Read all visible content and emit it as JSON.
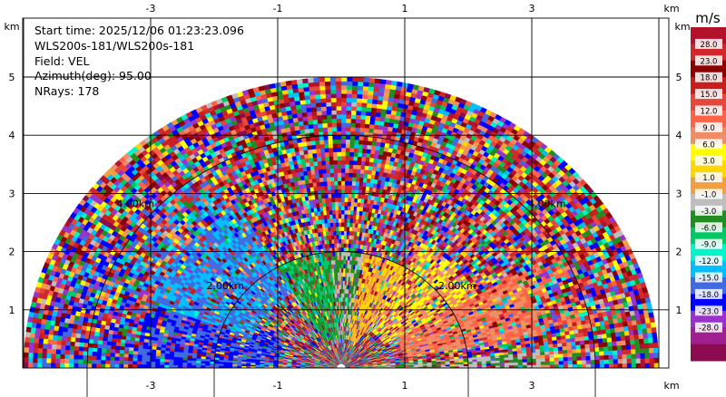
{
  "info": {
    "start_time": "Start time: 2025/12/06 01:23:23.096",
    "instrument": "WLS200s-181/WLS200s-181",
    "field": "Field: VEL",
    "azimuth": "Azimuth(deg): 95.00",
    "nrays": "NRays: 178"
  },
  "chart_data": {
    "type": "heatmap",
    "subtype": "rhi-polar-scan",
    "x_unit": "km",
    "y_unit": "km",
    "x_ticks": [
      "-3",
      "-1",
      "1",
      "3"
    ],
    "y_ticks": [
      "1",
      "2",
      "3",
      "4",
      "5"
    ],
    "xlim": [
      -5.0,
      5.0
    ],
    "ylim": [
      0,
      5.5
    ],
    "max_range_km": 5.0,
    "range_rings": [
      {
        "label": "2.00km",
        "radius_km": 2.0
      },
      {
        "label": "4.00km",
        "radius_km": 4.0
      }
    ],
    "grid": true,
    "colorbar": {
      "unit": "m/s",
      "labels": [
        "28.0",
        "23.0",
        "18.0",
        "15.0",
        "12.0",
        "9.0",
        "6.0",
        "3.0",
        "1.0",
        "-1.0",
        "-3.0",
        "-6.0",
        "-9.0",
        "-12.0",
        "-15.0",
        "-18.0",
        "-23.0",
        "-28.0"
      ],
      "colors": [
        "#b3122a",
        "#d0282c",
        "#8b0000",
        "#c81e1e",
        "#e5473a",
        "#ff6347",
        "#f08c66",
        "#ffff00",
        "#ffd700",
        "#f0a040",
        "#bebebe",
        "#228b22",
        "#00c864",
        "#00f5c8",
        "#00bfff",
        "#4169e1",
        "#0000ff",
        "#9932cc",
        "#a02090",
        "#8b0a50"
      ]
    },
    "velocity_pattern": [
      {
        "elevation_range_deg": [
          150,
          180
        ],
        "range_km": [
          1.0,
          4.5
        ],
        "velocity_m_s": -18.0
      },
      {
        "elevation_range_deg": [
          120,
          160
        ],
        "range_km": [
          1.5,
          4.0
        ],
        "velocity_m_s": -15.0
      },
      {
        "elevation_range_deg": [
          90,
          120
        ],
        "range_km": [
          0.5,
          2.0
        ],
        "velocity_m_s": -6.0
      },
      {
        "elevation_range_deg": [
          70,
          95
        ],
        "range_km": [
          0.5,
          2.0
        ],
        "velocity_m_s": -3.0
      },
      {
        "elevation_range_deg": [
          60,
          80
        ],
        "range_km": [
          0.5,
          2.0
        ],
        "velocity_m_s": 1.0
      },
      {
        "elevation_range_deg": [
          30,
          60
        ],
        "range_km": [
          0.8,
          2.5
        ],
        "velocity_m_s": 6.0
      },
      {
        "elevation_range_deg": [
          10,
          30
        ],
        "range_km": [
          1.0,
          4.0
        ],
        "velocity_m_s": 9.0
      },
      {
        "elevation_range_deg": [
          0,
          5
        ],
        "range_km": [
          0.0,
          4.0
        ],
        "velocity_m_s": -3.0
      }
    ]
  }
}
